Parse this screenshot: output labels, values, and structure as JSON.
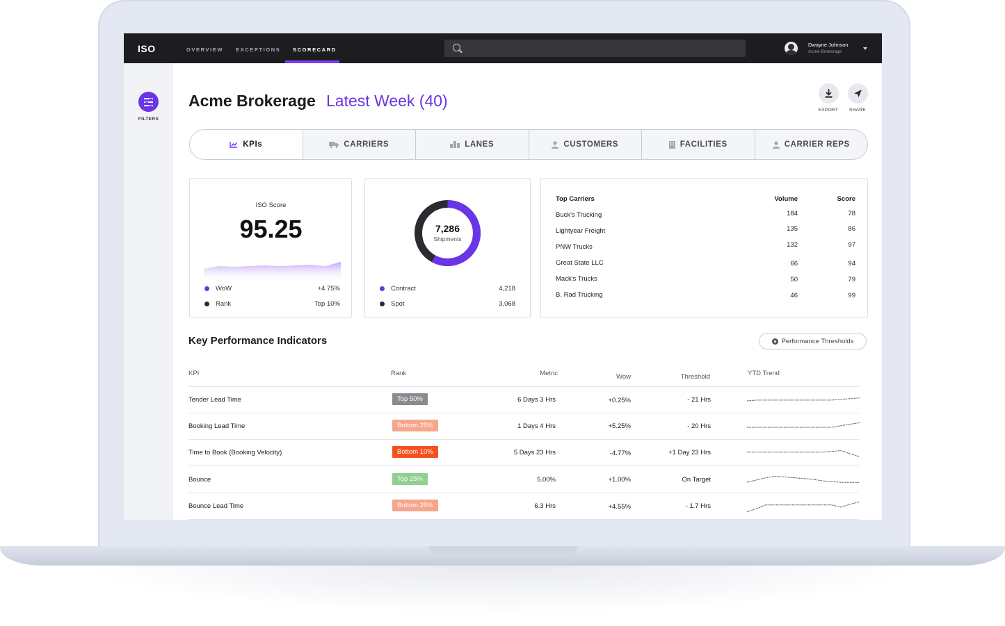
{
  "nav": {
    "logo": "ISO",
    "tabs": [
      {
        "label": "OVERVIEW"
      },
      {
        "label": "EXCEPTIONS"
      },
      {
        "label": "SCORECARD"
      }
    ],
    "search_placeholder": "",
    "user": {
      "name": "Dwayne Johnson",
      "company": "Acme Brokerage"
    }
  },
  "sidebar": {
    "filters_label": "FILTERS"
  },
  "header": {
    "title": "Acme Brokerage",
    "subtitle": "Latest Week (40)",
    "export_label": "EXPORT",
    "share_label": "SHARE"
  },
  "tabs": [
    {
      "label": "KPIs",
      "icon": "chart-icon"
    },
    {
      "label": "CARRIERS",
      "icon": "truck-icon"
    },
    {
      "label": "LANES",
      "icon": "city-icon"
    },
    {
      "label": "CUSTOMERS",
      "icon": "person-icon"
    },
    {
      "label": "FACILITIES",
      "icon": "building-icon"
    },
    {
      "label": "CARRIER REPS",
      "icon": "person-icon"
    }
  ],
  "iso_card": {
    "label": "ISO Score",
    "score": "95.25",
    "wow_label": "WoW",
    "wow_value": "+4.75%",
    "rank_label": "Rank",
    "rank_value": "Top 10%",
    "trend": [
      78,
      82,
      81,
      82,
      83,
      82,
      83,
      84,
      82,
      88
    ]
  },
  "shipments_card": {
    "total": "7,286",
    "unit": "Shipments",
    "contract_label": "Contract",
    "contract_value": "4,218",
    "spot_label": "Spot",
    "spot_value": "3,068",
    "contract_share": 0.579,
    "colors": {
      "contract": "#6a35e6",
      "spot": "#2b2b30"
    }
  },
  "top_carriers": {
    "heading": "Top  Carriers",
    "volume_label": "Volume",
    "score_label": "Score",
    "rows": [
      {
        "name": "Buck's Trucking",
        "volume": "184",
        "score": "78"
      },
      {
        "name": "Lightyear Freight",
        "volume": "135",
        "score": "86"
      },
      {
        "name": "PNW Trucks",
        "volume": "132",
        "score": "97"
      },
      {
        "name": "Great State LLC",
        "volume": "66",
        "score": "94"
      },
      {
        "name": "Mack's Trucks",
        "volume": "50",
        "score": "79"
      },
      {
        "name": "B. Rad  Trucking",
        "volume": "46",
        "score": "99"
      }
    ]
  },
  "kpi": {
    "title": "Key Performance Indicators",
    "thresholds_button": "Performance Thresholds",
    "columns": {
      "kpi": "KPI",
      "rank": "Rank",
      "metric": "Metric",
      "wow": "Wow",
      "threshold": "Threshold",
      "trend": "YTD Trend"
    },
    "rows": [
      {
        "kpi": "Tender Lead Time",
        "rank": "Top 50%",
        "rank_color": "#8a8a90",
        "metric": "6 Days 3 Hrs",
        "wow": "+0.25%",
        "threshold": "- 21 Hrs",
        "trend": [
          40,
          41,
          41,
          41,
          41,
          41,
          41,
          41,
          41,
          41,
          42,
          43,
          44
        ]
      },
      {
        "kpi": "Booking Lead Time",
        "rank": "Bottom 25%",
        "rank_color": "#f7a58c",
        "metric": "1 Days 4 Hrs",
        "wow": "+5.25%",
        "threshold": "- 20 Hrs",
        "trend": [
          40,
          40,
          40,
          40,
          40,
          40,
          40,
          40,
          40,
          40,
          42,
          44,
          46
        ]
      },
      {
        "kpi": "Time to Book (Booking Velocity)",
        "rank": "Bottom 10%",
        "rank_color": "#f4511e",
        "metric": "5 Days 23 Hrs",
        "wow": "-4.77%",
        "threshold": "+1 Day 23 Hrs",
        "trend": [
          42,
          42,
          42,
          42,
          42,
          42,
          42,
          42,
          42,
          43,
          44,
          40,
          36
        ]
      },
      {
        "kpi": "Bounce",
        "rank": "Top 25%",
        "rank_color": "#8fcf8f",
        "metric": "5.00%",
        "wow": "+1.00%",
        "threshold": "On Target",
        "trend": [
          38,
          41,
          44,
          46,
          45,
          44,
          43,
          42,
          40,
          39,
          38,
          38,
          38
        ]
      },
      {
        "kpi": "Bounce Lead Time",
        "rank": "Bottom 25%",
        "rank_color": "#f7a58c",
        "metric": "6.3 Hrs",
        "wow": "+4.55%",
        "threshold": "- 1.7 Hrs",
        "trend": [
          34,
          38,
          43,
          43,
          43,
          43,
          43,
          43,
          43,
          43,
          40,
          44,
          47
        ]
      }
    ]
  }
}
